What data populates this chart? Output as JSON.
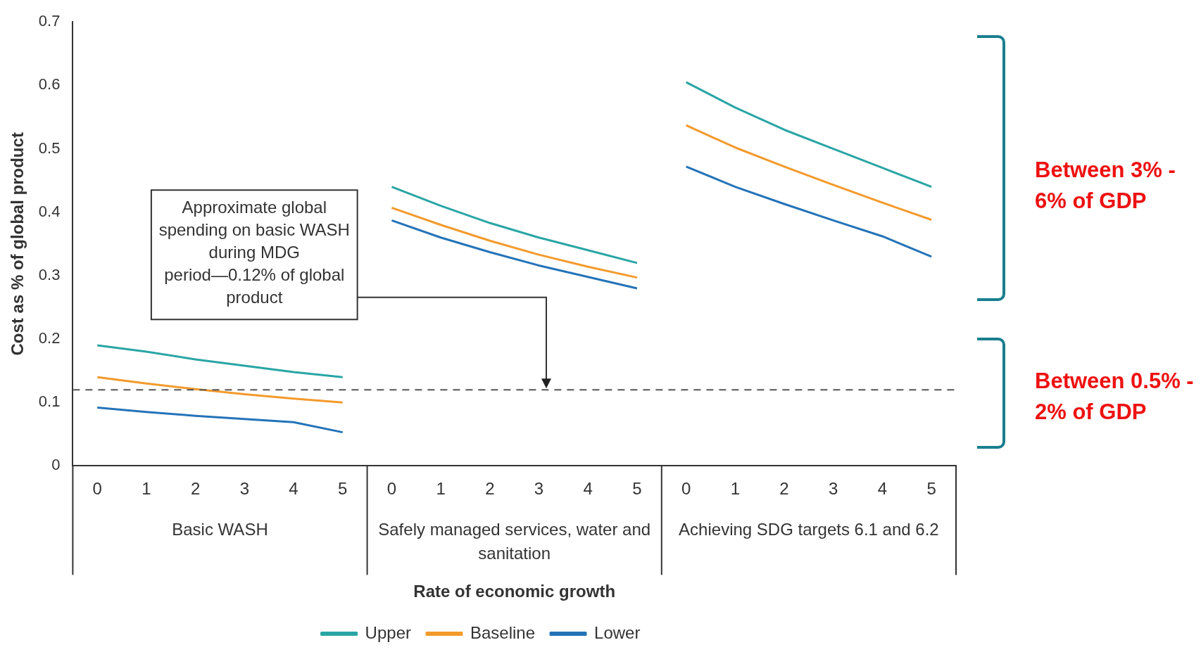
{
  "chart_data": {
    "type": "line",
    "xlabel": "Rate of economic growth",
    "ylabel": "Cost as % of global product",
    "categories": [
      "0",
      "1",
      "2",
      "3",
      "4",
      "5",
      "0",
      "1",
      "2",
      "3",
      "4",
      "5",
      "0",
      "1",
      "2",
      "3",
      "4",
      "5"
    ],
    "series": [
      {
        "name": "Upper",
        "color": "#2aa5a5",
        "values": [
          0.19,
          0.18,
          0.168,
          0.158,
          0.148,
          0.14,
          0.44,
          0.41,
          0.383,
          0.36,
          0.34,
          0.32,
          0.605,
          0.565,
          0.53,
          0.5,
          0.47,
          0.44
        ]
      },
      {
        "name": "Baseline",
        "color": "#f39a2c",
        "values": [
          0.14,
          0.13,
          0.121,
          0.113,
          0.106,
          0.1,
          0.407,
          0.38,
          0.355,
          0.333,
          0.314,
          0.297,
          0.537,
          0.502,
          0.472,
          0.443,
          0.415,
          0.388
        ]
      },
      {
        "name": "Lower",
        "color": "#2473b8",
        "values": [
          0.092,
          0.085,
          0.079,
          0.074,
          0.069,
          0.053,
          0.387,
          0.36,
          0.337,
          0.316,
          0.298,
          0.28,
          0.472,
          0.44,
          0.413,
          0.387,
          0.362,
          0.33
        ]
      }
    ],
    "ylim": [
      0,
      0.7
    ],
    "yticks": [
      0,
      0.1,
      0.2,
      0.3,
      0.4,
      0.5,
      0.6,
      0.7
    ],
    "ref_lines": [
      {
        "axis": "y",
        "value": 0.12,
        "color": "#555555",
        "line_style": "dashed"
      }
    ],
    "annotations": [
      "Basic WASH",
      "Safely managed services, water and sanitation",
      "Achieving SDG targets 6.1 and 6.2",
      "Between 3% - 6% of GDP",
      "Between 0.5% - 2% of GDP",
      "Approximate global spending on basic WASH during MDG period—0.12% of global product"
    ],
    "grid": false,
    "legend": "bottom",
    "marker": "none",
    "line_style": "solid"
  }
}
